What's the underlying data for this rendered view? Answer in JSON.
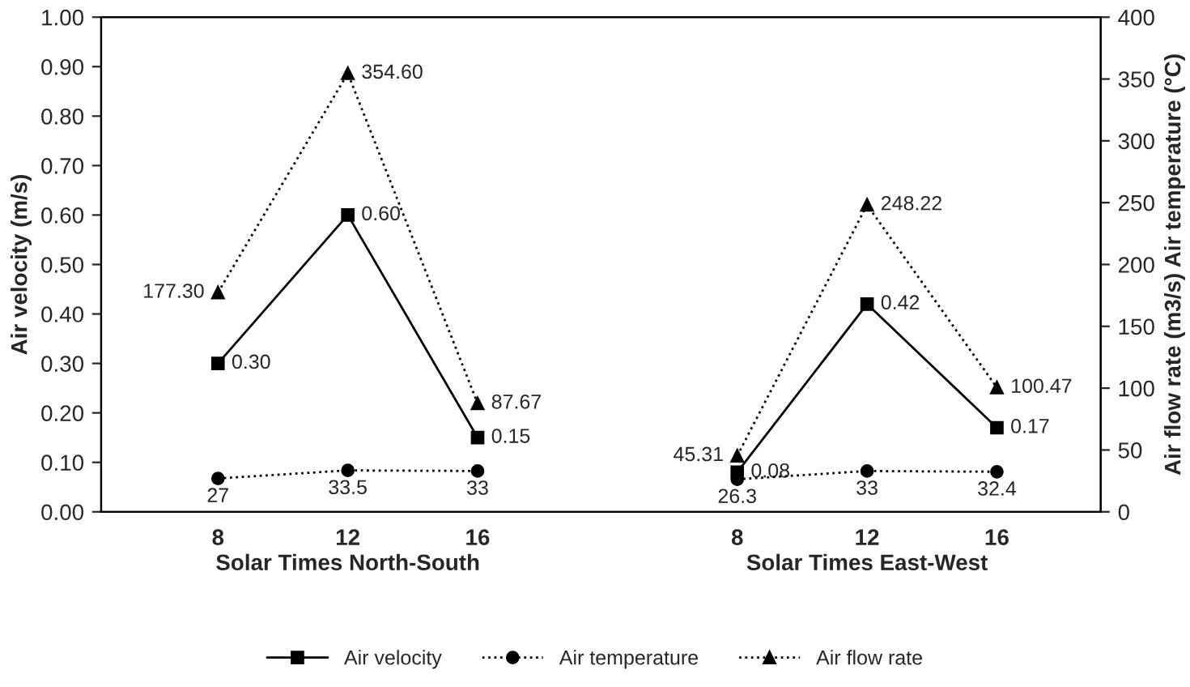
{
  "chart_data": {
    "type": "line",
    "categories": [
      "8",
      "12",
      "16",
      null,
      "8",
      "12",
      "16"
    ],
    "annotations": [
      "Solar Times North-South",
      "Solar Times East-West"
    ],
    "ylabel": "Air velocity (m/s)",
    "y2label": "Air flow rate (m3/s) Air temperature (°C)",
    "ylim": [
      0,
      1
    ],
    "yticks": [
      {
        "value": 0,
        "label": "0.00"
      },
      {
        "value": 0.1,
        "label": "0.10"
      },
      {
        "value": 0.2,
        "label": "0.20"
      },
      {
        "value": 0.3,
        "label": "0.30"
      },
      {
        "value": 0.4,
        "label": "0.40"
      },
      {
        "value": 0.5,
        "label": "0.50"
      },
      {
        "value": 0.6,
        "label": "0.60"
      },
      {
        "value": 0.7,
        "label": "0.70"
      },
      {
        "value": 0.8,
        "label": "0.80"
      },
      {
        "value": 0.9,
        "label": "0.90"
      },
      {
        "value": 1,
        "label": "1.00"
      }
    ],
    "y2lim": [
      0,
      400
    ],
    "y2ticks": [
      0,
      50,
      100,
      150,
      200,
      250,
      300,
      350,
      400
    ],
    "legend": "bottom",
    "series": [
      {
        "name": "Air velocity",
        "color": "#000000",
        "marker": "square",
        "line_style": "solid",
        "values": [
          0.3,
          0.6,
          0.15,
          null,
          0.08,
          0.42,
          0.17
        ],
        "value_labels": [
          "0.30",
          "0.60",
          "0.15",
          null,
          "0.08",
          "0.42",
          "0.17"
        ]
      },
      {
        "name": "Air temperature",
        "color": "#000000",
        "marker": "circle",
        "line_style": "dotted",
        "axis": "y2",
        "values": [
          27,
          33.5,
          33,
          null,
          26.3,
          33,
          32.4
        ],
        "value_labels": [
          "27",
          "33.5",
          "33",
          null,
          "26.3",
          "33",
          "32.4"
        ]
      },
      {
        "name": "Air flow rate",
        "color": "#000000",
        "marker": "triangle",
        "line_style": "dotted",
        "axis": "y2",
        "values": [
          177.3,
          354.6,
          87.67,
          null,
          45.31,
          248.22,
          100.47
        ],
        "value_labels": [
          "177.30",
          "354.60",
          "87.67",
          null,
          "45.31",
          "248.22",
          "100.47"
        ]
      }
    ]
  }
}
